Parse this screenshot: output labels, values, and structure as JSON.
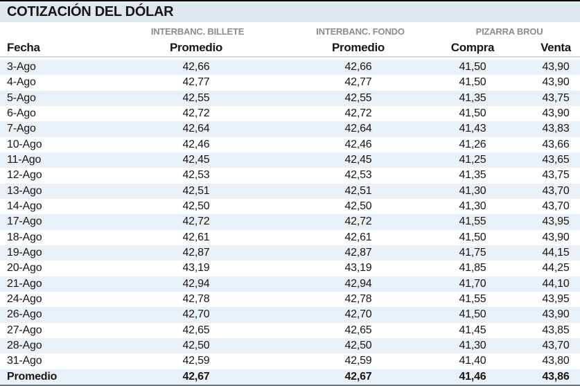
{
  "title": "COTIZACIÓN DEL DÓLAR",
  "chart_data": {
    "type": "table",
    "title": "COTIZACIÓN DEL DÓLAR",
    "column_groups": [
      {
        "label": "INTERBANC. BILLETE",
        "columns": [
          "Promedio"
        ]
      },
      {
        "label": "INTERBANC. FONDO",
        "columns": [
          "Promedio"
        ]
      },
      {
        "label": "PIZARRA BROU",
        "columns": [
          "Compra",
          "Venta"
        ]
      }
    ],
    "columns": [
      "Fecha",
      "Promedio",
      "Promedio",
      "Compra",
      "Venta"
    ],
    "rows": [
      [
        "3-Ago",
        "42,66",
        "42,66",
        "41,50",
        "43,90"
      ],
      [
        "4-Ago",
        "42,77",
        "42,77",
        "41,50",
        "43,90"
      ],
      [
        "5-Ago",
        "42,55",
        "42,55",
        "41,35",
        "43,75"
      ],
      [
        "6-Ago",
        "42,72",
        "42,72",
        "41,50",
        "43,90"
      ],
      [
        "7-Ago",
        "42,64",
        "42,64",
        "41,43",
        "43,83"
      ],
      [
        "10-Ago",
        "42,46",
        "42,46",
        "41,26",
        "43,66"
      ],
      [
        "11-Ago",
        "42,45",
        "42,45",
        "41,25",
        "43,65"
      ],
      [
        "12-Ago",
        "42,53",
        "42,53",
        "41,35",
        "43,75"
      ],
      [
        "13-Ago",
        "42,51",
        "42,51",
        "41,30",
        "43,70"
      ],
      [
        "14-Ago",
        "42,50",
        "42,50",
        "41,30",
        "43,70"
      ],
      [
        "17-Ago",
        "42,72",
        "42,72",
        "41,55",
        "43,95"
      ],
      [
        "18-Ago",
        "42,61",
        "42,61",
        "41,50",
        "43,90"
      ],
      [
        "19-Ago",
        "42,87",
        "42,87",
        "41,75",
        "44,15"
      ],
      [
        "20-Ago",
        "43,19",
        "43,19",
        "41,85",
        "44,25"
      ],
      [
        "21-Ago",
        "42,94",
        "42,94",
        "41,70",
        "44,10"
      ],
      [
        "24-Ago",
        "42,78",
        "42,78",
        "41,55",
        "43,95"
      ],
      [
        "26-Ago",
        "42,70",
        "42,70",
        "41,50",
        "43,90"
      ],
      [
        "27-Ago",
        "42,65",
        "42,65",
        "41,45",
        "43,85"
      ],
      [
        "28-Ago",
        "42,50",
        "42,50",
        "41,30",
        "43,70"
      ],
      [
        "31-Ago",
        "42,59",
        "42,59",
        "41,40",
        "43,80"
      ]
    ],
    "footer": [
      "Promedio",
      "42,67",
      "42,67",
      "41,46",
      "43,86"
    ]
  },
  "colors": {
    "title_bar_bg": "#dfe8ec",
    "stripe": "#e9f1f6",
    "header_rule": "#ccdce4",
    "group_header_text": "#8c8c8c",
    "top_border": "#000000",
    "bottom_border": "#6e7a84"
  }
}
